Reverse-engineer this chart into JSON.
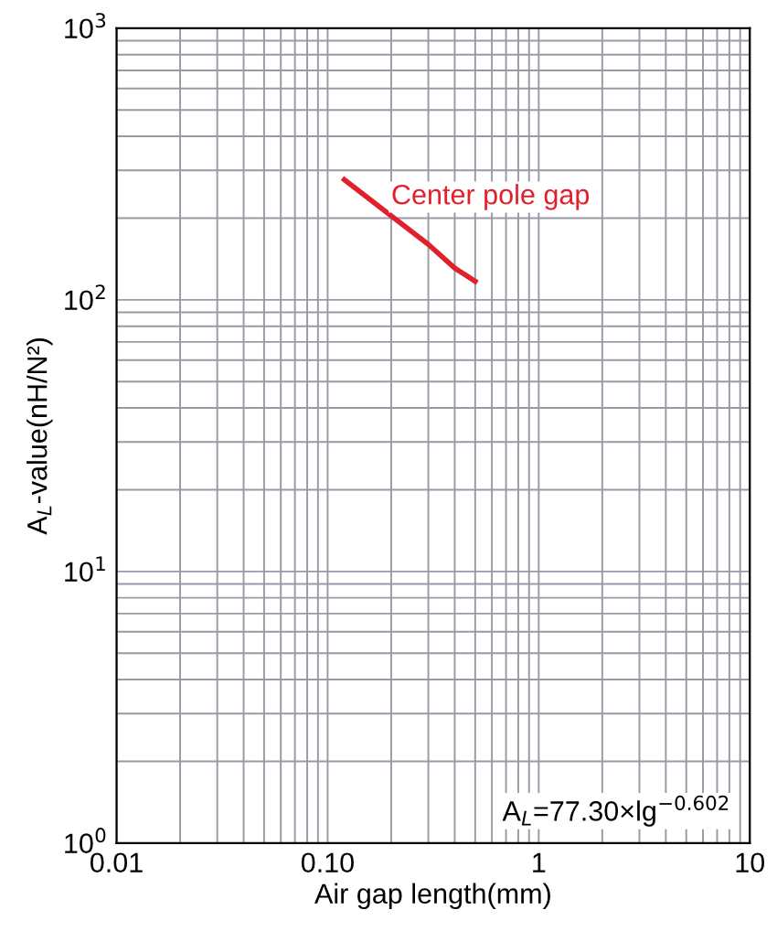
{
  "chart_data": {
    "type": "line",
    "xlabel": "Air gap length(mm)",
    "ylabel": "A$_{L}$-value(nH/N²)",
    "log": "xy",
    "grid": true,
    "xlim": [
      0.01,
      10
    ],
    "ylim": [
      1,
      1000
    ],
    "xticks": [
      0.01,
      {
        "value": 0.1,
        "label": "0.10"
      },
      1,
      10
    ],
    "yticks": [
      {
        "value": 1,
        "label": "10$^{0}$"
      },
      {
        "value": 10,
        "label": "10$^{1}$"
      },
      {
        "value": 100,
        "label": "10$^{2}$"
      },
      {
        "value": 1000,
        "label": "10$^{3}$"
      }
    ],
    "series": [
      {
        "name": "Center pole gap",
        "color": "#e0202a",
        "x": [
          0.12,
          0.2,
          0.3,
          0.4,
          0.5
        ],
        "values": [
          277,
          204,
          160,
          131,
          117
        ]
      }
    ],
    "annotations": [
      "A$_{L}$=77.30×lg$^{−0.602}$"
    ]
  }
}
